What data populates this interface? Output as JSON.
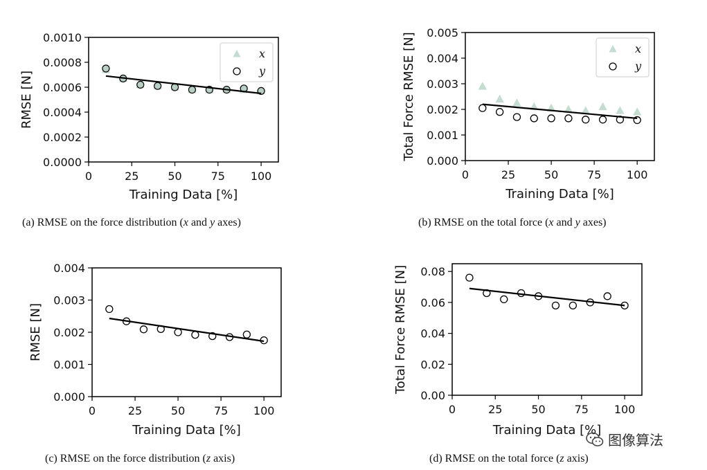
{
  "colors": {
    "triangle": "#c5dcd0",
    "circle_fill_a": "#b8d0c4",
    "line": "#000000",
    "marker_edge": "#000000"
  },
  "watermark": {
    "text": "图像算法",
    "icon": "wechat-icon"
  },
  "chart_data": [
    {
      "type": "scatter",
      "id": "a",
      "caption": {
        "prefix": "(a) RMSE on the force distribution (",
        "v1": "x",
        "mid": " and ",
        "v2": "y",
        "suffix": " axes)"
      },
      "xlabel": "Training Data [%]",
      "ylabel": "RMSE [N]",
      "xlim": [
        0,
        110
      ],
      "ylim": [
        0,
        0.001
      ],
      "xticks": [
        "0",
        "25",
        "50",
        "75",
        "100"
      ],
      "xtick_values": [
        0,
        25,
        50,
        75,
        100
      ],
      "yticks": [
        "0.0000",
        "0.0002",
        "0.0004",
        "0.0006",
        "0.0008",
        "0.0010"
      ],
      "ytick_values": [
        0,
        0.0002,
        0.0004,
        0.0006,
        0.0008,
        0.001
      ],
      "legend": {
        "position": "top-right",
        "entries": [
          {
            "label": "x",
            "marker": "triangle"
          },
          {
            "label": "y",
            "marker": "circle"
          }
        ]
      },
      "series": [
        {
          "name": "x",
          "marker": "triangle",
          "x": [
            10,
            20,
            30,
            40,
            50,
            60,
            70,
            80,
            90,
            100
          ],
          "values": [
            0.00074,
            0.00067,
            0.00062,
            0.00061,
            0.0006,
            0.00058,
            0.00058,
            0.00058,
            0.00058,
            0.00057
          ]
        },
        {
          "name": "y",
          "marker": "circle-filled",
          "x": [
            10,
            20,
            30,
            40,
            50,
            60,
            70,
            80,
            90,
            100
          ],
          "values": [
            0.00075,
            0.00067,
            0.00062,
            0.00061,
            0.0006,
            0.00058,
            0.00058,
            0.00058,
            0.00059,
            0.00057
          ]
        }
      ],
      "fit": {
        "x": [
          10,
          100
        ],
        "values": [
          0.00069,
          0.00055
        ]
      }
    },
    {
      "type": "scatter",
      "id": "b",
      "caption": {
        "prefix": "(b) RMSE on the total force (",
        "v1": "x",
        "mid": " and ",
        "v2": "y",
        "suffix": " axes)"
      },
      "xlabel": "Training Data [%]",
      "ylabel": "Total Force RMSE [N]",
      "xlim": [
        0,
        110
      ],
      "ylim": [
        0,
        0.005
      ],
      "xticks": [
        "0",
        "25",
        "50",
        "75",
        "100"
      ],
      "xtick_values": [
        0,
        25,
        50,
        75,
        100
      ],
      "yticks": [
        "0.000",
        "0.001",
        "0.002",
        "0.003",
        "0.004",
        "0.005"
      ],
      "ytick_values": [
        0,
        0.001,
        0.002,
        0.003,
        0.004,
        0.005
      ],
      "legend": {
        "position": "top-right",
        "entries": [
          {
            "label": "x",
            "marker": "triangle"
          },
          {
            "label": "y",
            "marker": "circle"
          }
        ]
      },
      "series": [
        {
          "name": "x",
          "marker": "triangle",
          "x": [
            10,
            20,
            30,
            40,
            50,
            60,
            70,
            80,
            90,
            100
          ],
          "values": [
            0.0029,
            0.0024,
            0.00225,
            0.0021,
            0.00205,
            0.002,
            0.00195,
            0.0021,
            0.00195,
            0.0019
          ]
        },
        {
          "name": "y",
          "marker": "circle",
          "x": [
            10,
            20,
            30,
            40,
            50,
            60,
            70,
            80,
            90,
            100
          ],
          "values": [
            0.00205,
            0.0019,
            0.0017,
            0.00165,
            0.00165,
            0.00165,
            0.0016,
            0.0016,
            0.0016,
            0.00158
          ]
        }
      ],
      "fit": {
        "x": [
          10,
          100
        ],
        "values": [
          0.0022,
          0.00165
        ]
      }
    },
    {
      "type": "scatter",
      "id": "c",
      "caption": {
        "prefix": "(c) RMSE on the force distribution (",
        "v1": "z",
        "mid": "",
        "v2": "",
        "suffix": " axis)"
      },
      "xlabel": "Training Data [%]",
      "ylabel": "RMSE [N]",
      "xlim": [
        0,
        110
      ],
      "ylim": [
        0,
        0.004
      ],
      "xticks": [
        "0",
        "25",
        "50",
        "75",
        "100"
      ],
      "xtick_values": [
        0,
        25,
        50,
        75,
        100
      ],
      "yticks": [
        "0.000",
        "0.001",
        "0.002",
        "0.003",
        "0.004"
      ],
      "ytick_values": [
        0,
        0.001,
        0.002,
        0.003,
        0.004
      ],
      "legend": null,
      "series": [
        {
          "name": "z",
          "marker": "circle",
          "x": [
            10,
            20,
            30,
            40,
            50,
            60,
            70,
            80,
            90,
            100
          ],
          "values": [
            0.00272,
            0.00234,
            0.00209,
            0.0021,
            0.002,
            0.00192,
            0.00188,
            0.00185,
            0.00193,
            0.00175
          ]
        }
      ],
      "fit": {
        "x": [
          10,
          100
        ],
        "values": [
          0.00243,
          0.00172
        ]
      }
    },
    {
      "type": "scatter",
      "id": "d",
      "caption": {
        "prefix": "(d) RMSE on the total force (",
        "v1": "z",
        "mid": "",
        "v2": "",
        "suffix": " axis)"
      },
      "xlabel": "Training Data [%]",
      "ylabel": "Total Force RMSE [N]",
      "xlim": [
        0,
        110
      ],
      "ylim": [
        0,
        0.085
      ],
      "xticks": [
        "0",
        "25",
        "50",
        "75",
        "100"
      ],
      "xtick_values": [
        0,
        25,
        50,
        75,
        100
      ],
      "yticks": [
        "0.00",
        "0.02",
        "0.04",
        "0.06",
        "0.08"
      ],
      "ytick_values": [
        0,
        0.02,
        0.04,
        0.06,
        0.08
      ],
      "legend": null,
      "series": [
        {
          "name": "z",
          "marker": "circle",
          "x": [
            10,
            20,
            30,
            40,
            50,
            60,
            70,
            80,
            90,
            100
          ],
          "values": [
            0.076,
            0.066,
            0.062,
            0.066,
            0.064,
            0.058,
            0.058,
            0.06,
            0.064,
            0.058
          ]
        }
      ],
      "fit": {
        "x": [
          10,
          100
        ],
        "values": [
          0.069,
          0.058
        ]
      }
    }
  ]
}
